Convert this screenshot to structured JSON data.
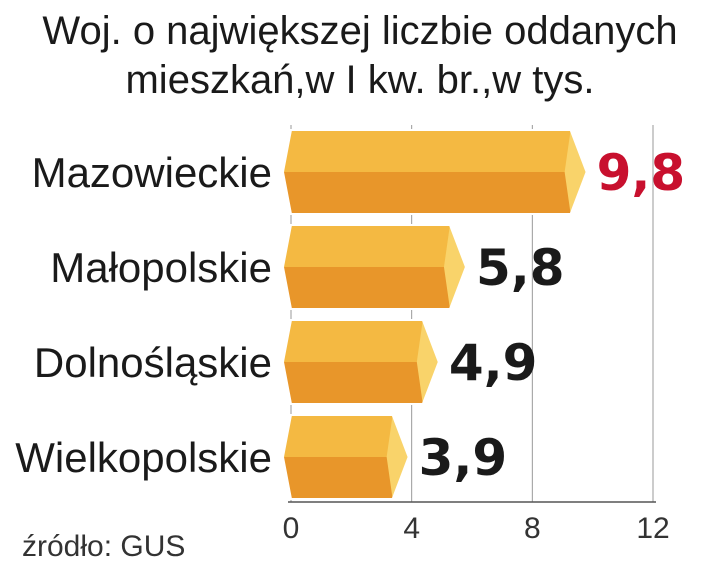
{
  "chart_data": {
    "type": "bar",
    "orientation": "horizontal",
    "title_lines": [
      "Woj. o największej liczbie oddanych",
      "mieszkań,w I kw. br.,w tys."
    ],
    "categories": [
      "Mazowieckie",
      "Małopolskie",
      "Dolnośląskie",
      "Wielkopolskie"
    ],
    "values": [
      9.8,
      5.8,
      4.9,
      3.9
    ],
    "value_labels": [
      "9,8",
      "5,8",
      "4,9",
      "3,9"
    ],
    "xlim": [
      0,
      12
    ],
    "ticks": [
      0,
      4,
      8,
      12
    ],
    "tick_labels": [
      "0",
      "4",
      "8",
      "12"
    ],
    "grid": true,
    "source": "źródło: GUS"
  },
  "colors": {
    "bar_top": "#F4B942",
    "bar_bottom": "#E8962A",
    "bar_end": "#F9D36A",
    "bar_edge": "#FFFFFF",
    "highlight_value": "#C8102E",
    "default_value": "#1A1A1A",
    "grid": "#999999"
  },
  "highlight_index": 0
}
